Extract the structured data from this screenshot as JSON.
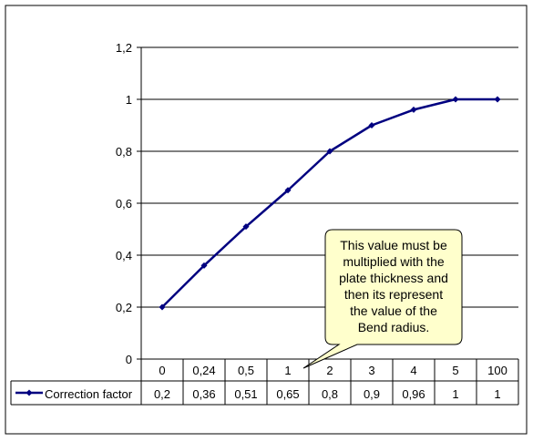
{
  "chart_data": {
    "type": "line",
    "series": [
      {
        "name": "Correction factor",
        "color": "#000080",
        "values": [
          0.2,
          0.36,
          0.51,
          0.65,
          0.8,
          0.9,
          0.96,
          1,
          1
        ]
      }
    ],
    "categories": [
      "0",
      "0,24",
      "0,5",
      "1",
      "2",
      "3",
      "4",
      "5",
      "100"
    ],
    "table_values": [
      "0,2",
      "0,36",
      "0,51",
      "0,65",
      "0,8",
      "0,9",
      "0,96",
      "1",
      "1"
    ],
    "y_ticks": [
      "0",
      "0,2",
      "0,4",
      "0,6",
      "0,8",
      "1",
      "1,2"
    ],
    "ylim": [
      0,
      1.2
    ],
    "grid": "horizontal",
    "data_table": true,
    "annotation": {
      "lines": [
        "This value must be",
        "multiplied with the",
        "plate thickness and",
        "then its represent",
        "the value of the",
        "Bend radius."
      ],
      "fill": "#ffffcc"
    }
  }
}
